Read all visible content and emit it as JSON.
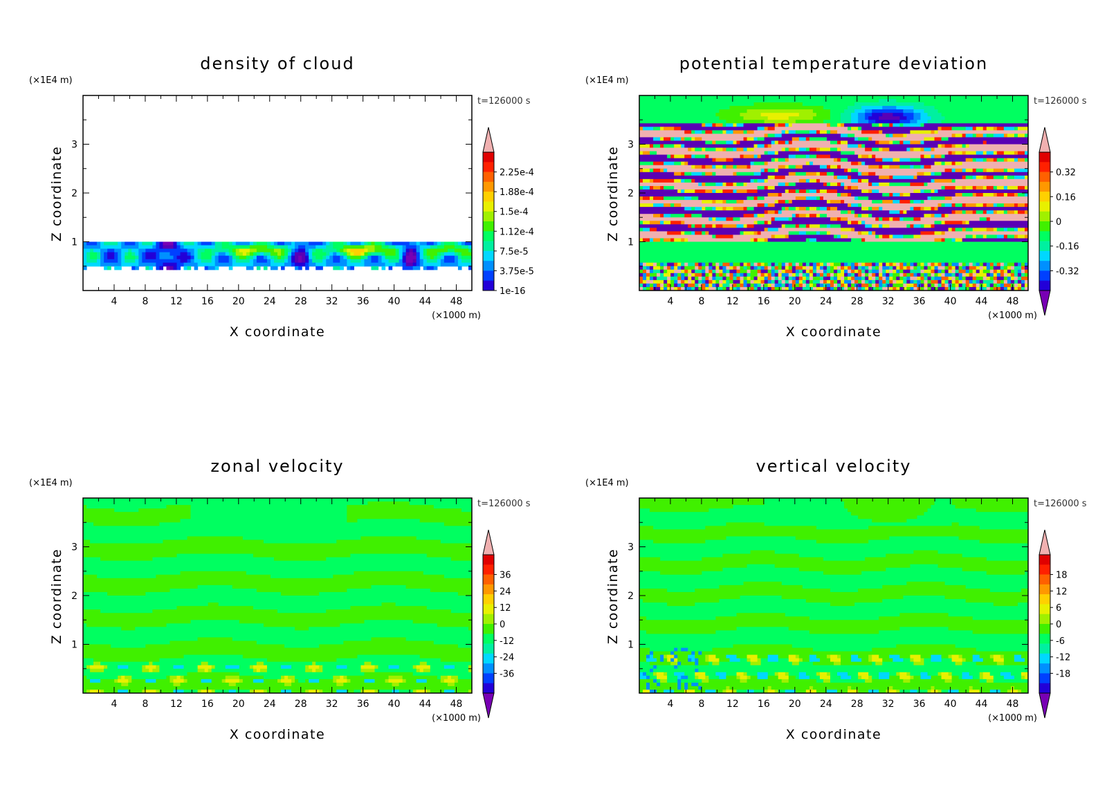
{
  "colors": {
    "palette": [
      "#7800b4",
      "#5a00b4",
      "#2200d8",
      "#0040ff",
      "#0090ff",
      "#00d8ff",
      "#00f0a0",
      "#00ff60",
      "#40f000",
      "#a0f000",
      "#e8f000",
      "#ffd000",
      "#ff9800",
      "#ff6000",
      "#ff2000",
      "#e00000",
      "#f0b0b0"
    ],
    "background": "#ffffff"
  },
  "chart_data": [
    {
      "type": "heatmap",
      "title": "density of cloud",
      "xlabel": "X coordinate",
      "ylabel": "Z coordinate",
      "x_unit": "(×1000 m)",
      "y_unit": "(×1E4 m)",
      "time_label": "t=126000 s",
      "xlim": [
        0,
        50
      ],
      "ylim": [
        0,
        4
      ],
      "x_ticks": [
        4,
        8,
        12,
        16,
        20,
        24,
        28,
        32,
        36,
        40,
        44,
        48
      ],
      "y_ticks": [
        1,
        2,
        3
      ],
      "colorbar": {
        "labels": [
          "2.25e-4",
          "1.88e-4",
          "1.5e-4",
          "1.12e-4",
          "7.5e-5",
          "3.75e-5",
          "1e-16"
        ],
        "arrow_low": false,
        "arrow_high": true
      }
    },
    {
      "type": "heatmap",
      "title": "potential temperature deviation",
      "xlabel": "X coordinate",
      "ylabel": "Z coordinate",
      "x_unit": "(×1000 m)",
      "y_unit": "(×1E4 m)",
      "time_label": "t=126000 s",
      "xlim": [
        0,
        50
      ],
      "ylim": [
        0,
        4
      ],
      "x_ticks": [
        4,
        8,
        12,
        16,
        20,
        24,
        28,
        32,
        36,
        40,
        44,
        48
      ],
      "y_ticks": [
        1,
        2,
        3
      ],
      "colorbar": {
        "labels": [
          "0.32",
          "0.16",
          "0",
          "-0.16",
          "-0.32"
        ],
        "arrow_low": true,
        "arrow_high": true
      }
    },
    {
      "type": "heatmap",
      "title": "zonal velocity",
      "xlabel": "X coordinate",
      "ylabel": "Z coordinate",
      "x_unit": "(×1000 m)",
      "y_unit": "(×1E4 m)",
      "time_label": "t=126000 s",
      "xlim": [
        0,
        50
      ],
      "ylim": [
        0,
        4
      ],
      "x_ticks": [
        4,
        8,
        12,
        16,
        20,
        24,
        28,
        32,
        36,
        40,
        44,
        48
      ],
      "y_ticks": [
        1,
        2,
        3
      ],
      "colorbar": {
        "labels": [
          "36",
          "24",
          "12",
          "0",
          "-12",
          "-24",
          "-36"
        ],
        "arrow_low": true,
        "arrow_high": true
      }
    },
    {
      "type": "heatmap",
      "title": "vertical velocity",
      "xlabel": "X coordinate",
      "ylabel": "Z coordinate",
      "x_unit": "(×1000 m)",
      "y_unit": "(×1E4 m)",
      "time_label": "t=126000 s",
      "xlim": [
        0,
        50
      ],
      "ylim": [
        0,
        4
      ],
      "x_ticks": [
        4,
        8,
        12,
        16,
        20,
        24,
        28,
        32,
        36,
        40,
        44,
        48
      ],
      "y_ticks": [
        1,
        2,
        3
      ],
      "colorbar": {
        "labels": [
          "18",
          "12",
          "6",
          "0",
          "-6",
          "-12",
          "-18"
        ],
        "arrow_low": true,
        "arrow_high": true
      }
    }
  ]
}
